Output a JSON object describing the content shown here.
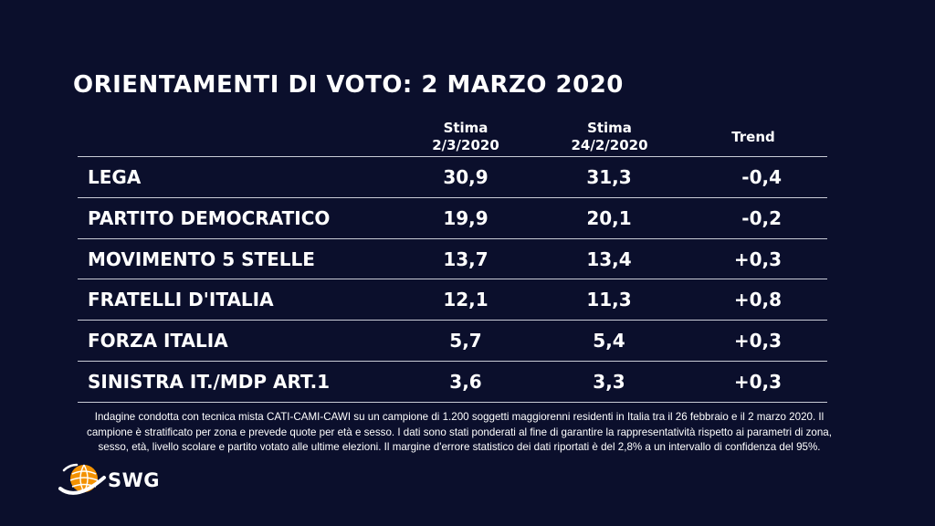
{
  "title": "ORIENTAMENTI DI VOTO: 2 MARZO 2020",
  "columns": {
    "current": {
      "line1": "Stima",
      "line2": "2/3/2020"
    },
    "previous": {
      "line1": "Stima",
      "line2": "24/2/2020"
    },
    "trend": "Trend"
  },
  "chart_data": {
    "type": "table",
    "title": "ORIENTAMENTI DI VOTO: 2 MARZO 2020",
    "columns": [
      "Stima 2/3/2020",
      "Stima 24/2/2020",
      "Trend"
    ],
    "rows": [
      {
        "party": "LEGA",
        "current": "30,9",
        "previous": "31,3",
        "trend": "-0,4"
      },
      {
        "party": "PARTITO DEMOCRATICO",
        "current": "19,9",
        "previous": "20,1",
        "trend": "-0,2"
      },
      {
        "party": "MOVIMENTO 5 STELLE",
        "current": "13,7",
        "previous": "13,4",
        "trend": "+0,3"
      },
      {
        "party": "FRATELLI D'ITALIA",
        "current": "12,1",
        "previous": "11,3",
        "trend": "+0,8"
      },
      {
        "party": "FORZA ITALIA",
        "current": "5,7",
        "previous": "5,4",
        "trend": "+0,3"
      },
      {
        "party": "SINISTRA IT./MDP ART.1",
        "current": "3,6",
        "previous": "3,3",
        "trend": "+0,3"
      }
    ]
  },
  "footnote": "Indagine condotta con tecnica mista CATI-CAMI-CAWI su un campione di 1.200 soggetti maggiorenni residenti in Italia tra il 26 febbraio e il 2 marzo 2020. Il campione è stratificato per zona e prevede quote per età e sesso. I dati sono stati ponderati al fine di garantire la rappresentatività rispetto ai parametri di zona, sesso, età, livello scolare e partito votato alle ultime elezioni. Il margine d'errore statistico dei dati riportati è del 2,8% a un intervallo di confidenza del 95%.",
  "logo": {
    "text": "SWG",
    "colors": {
      "globe": "#f39200",
      "swoosh": "#ffffff"
    },
    "icon": "swg-globe-icon"
  }
}
